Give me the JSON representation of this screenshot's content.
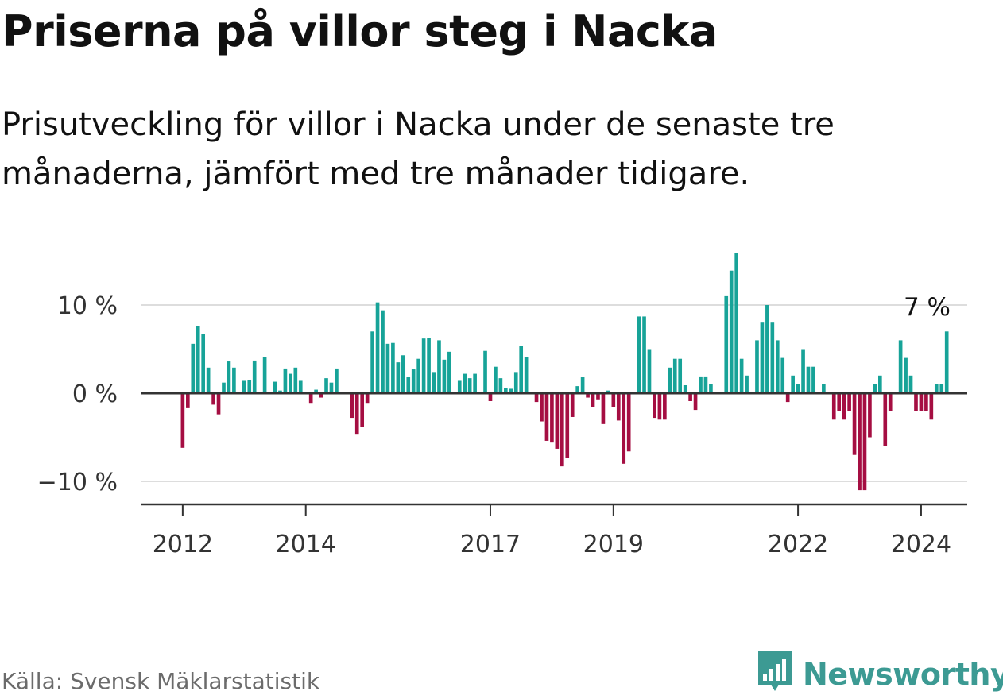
{
  "title": "Priserna på villor steg i Nacka",
  "subtitle": "Prisutveckling för villor i Nacka under de senaste tre månaderna, jämfört med tre månader tidigare.",
  "footer": {
    "source": "Källa: Svensk Mäklarstatistik"
  },
  "brand": {
    "name": "Newsworthy",
    "icon": "bar-chart-logo-icon"
  },
  "colors": {
    "positive": "#17a398",
    "negative": "#a50e42",
    "grid": "#dddddd",
    "axis": "#333333",
    "text": "#111111",
    "brand": "#3c9a93"
  },
  "chart_data": {
    "type": "bar",
    "title": "Priserna på villor steg i Nacka",
    "xlabel": "",
    "ylabel": "",
    "ylim": [
      -12.4,
      16.5
    ],
    "y_ticks": [
      10,
      0,
      -10
    ],
    "y_tick_labels": [
      "10 %",
      "0 %",
      "−10 %"
    ],
    "x_range": [
      2011.33,
      2024.75
    ],
    "x_ticks": [
      2012,
      2014,
      2017,
      2019,
      2022,
      2024
    ],
    "x_tick_labels": [
      "2012",
      "2014",
      "2017",
      "2019",
      "2022",
      "2024"
    ],
    "grid": true,
    "start": 2012.0,
    "step": 0.0833333,
    "values": [
      -6.2,
      -1.7,
      5.6,
      7.6,
      6.7,
      2.9,
      -1.3,
      -2.4,
      1.2,
      3.6,
      2.9,
      0.0,
      1.4,
      1.5,
      3.7,
      0.0,
      4.1,
      0.0,
      1.3,
      0.3,
      2.8,
      2.2,
      2.9,
      1.4,
      0.0,
      -1.1,
      0.4,
      -0.5,
      1.7,
      1.2,
      2.8,
      0.0,
      0.0,
      -2.8,
      -4.7,
      -3.8,
      -1.1,
      7.0,
      10.3,
      9.4,
      5.6,
      5.7,
      3.5,
      4.3,
      1.8,
      2.7,
      3.9,
      6.2,
      6.3,
      2.4,
      6.0,
      3.8,
      4.7,
      0.0,
      1.4,
      2.2,
      1.7,
      2.2,
      0.0,
      4.8,
      -0.9,
      3.0,
      1.7,
      0.6,
      0.5,
      2.4,
      5.4,
      4.1,
      0.0,
      -1.0,
      -3.2,
      -5.4,
      -5.6,
      -6.3,
      -8.3,
      -7.3,
      -2.7,
      0.8,
      1.8,
      -0.5,
      -1.6,
      -0.7,
      -3.5,
      0.3,
      -1.6,
      -3.1,
      -8.0,
      -6.6,
      0.0,
      8.7,
      8.7,
      5.0,
      -2.8,
      -3.0,
      -3.0,
      2.9,
      3.9,
      3.9,
      0.9,
      -0.9,
      -1.9,
      1.9,
      1.9,
      1.0,
      0.0,
      0.0,
      11.0,
      13.9,
      15.9,
      3.9,
      2.0,
      0.0,
      6.0,
      8.0,
      10.0,
      8.0,
      6.0,
      4.0,
      -1.0,
      2.0,
      1.0,
      5.0,
      3.0,
      3.0,
      0.0,
      1.0,
      0.0,
      -3.0,
      -2.0,
      -3.0,
      -2.0,
      -7.0,
      -11.0,
      -11.0,
      -5.0,
      1.0,
      2.0,
      -6.0,
      -2.0,
      0.0,
      6.0,
      4.0,
      2.0,
      -2.0,
      -2.0,
      -2.0,
      -3.0,
      1.0,
      1.0,
      7.0
    ],
    "annotations": [
      {
        "text": "7 %",
        "target": "last"
      }
    ]
  }
}
